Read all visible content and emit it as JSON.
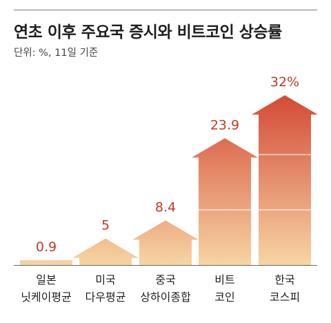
{
  "header": {
    "title": "연초 이후 주요국 증시와 비트코인 상승률",
    "subtitle": "단위: %, 11일 기준"
  },
  "chart_data": {
    "type": "bar",
    "title": "연초 이후 주요국 증시와 비트코인 상승률",
    "subtitle": "단위: %, 11일 기준",
    "categories": [
      [
        "일본",
        "닛케이평균"
      ],
      [
        "미국",
        "다우평균"
      ],
      [
        "중국",
        "상하이종합"
      ],
      [
        "비트",
        "코인"
      ],
      [
        "한국",
        "코스피"
      ]
    ],
    "values": [
      0.9,
      5,
      8.4,
      23.9,
      32
    ],
    "value_labels": [
      "0.9",
      "5",
      "8.4",
      "23.9",
      "32%"
    ],
    "ylim": [
      0,
      34
    ],
    "grid": false,
    "colors": {
      "label": "#c0392b",
      "bar_top_tall": "#d24a36",
      "bar_bottom": "#f6d3a2",
      "baseline": "#666666"
    }
  }
}
